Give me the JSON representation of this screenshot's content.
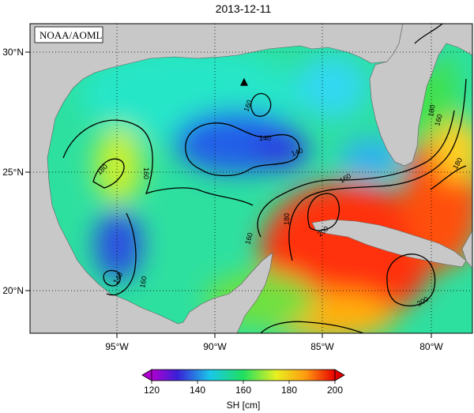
{
  "title": "2013-12-11",
  "credit": "NOAA/AOML",
  "map": {
    "lon_labels": [
      "95°W",
      "90°W",
      "85°W",
      "80°W"
    ],
    "lat_labels": [
      "30°N",
      "25°N",
      "20°N"
    ],
    "contour_labels": [
      "180",
      "160",
      "160",
      "140",
      "140",
      "160",
      "160",
      "160",
      "160",
      "180",
      "200",
      "200",
      "180",
      "140",
      "180"
    ],
    "marker_symbol": "▲",
    "marker_icon": "triangle-marker-icon"
  },
  "colorbar": {
    "label": "SH [cm]",
    "ticks": [
      "120",
      "140",
      "160",
      "180",
      "200"
    ],
    "colors": [
      "#b000d0",
      "#3a20d8",
      "#19c8e8",
      "#20e060",
      "#e8f020",
      "#ff9a10",
      "#ff2000",
      "#e00000"
    ]
  },
  "colors": {
    "land": "#c8c8c8",
    "grid": "#000000"
  }
}
